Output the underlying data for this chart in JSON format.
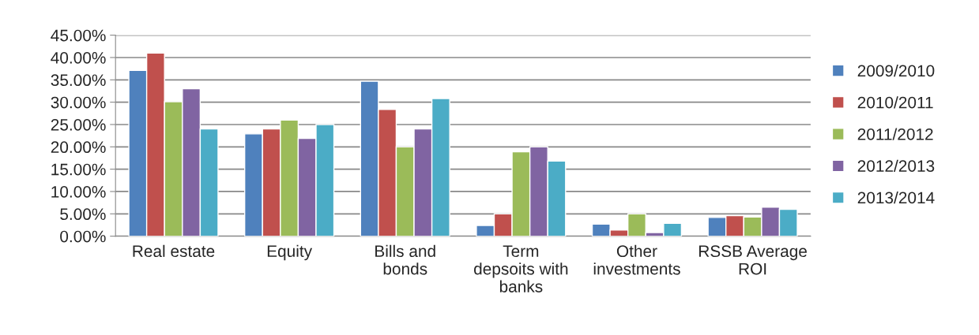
{
  "chart_data": {
    "type": "bar",
    "categories": [
      "Real estate",
      "Equity",
      "Bills and\nbonds",
      "Term\ndepsoits with\nbanks",
      "Other\ninvestments",
      "RSSB Average\nROI"
    ],
    "series": [
      {
        "name": "2009/2010",
        "color": "#4f81bd",
        "values": [
          37.1,
          22.9,
          34.7,
          2.4,
          2.7,
          4.2
        ]
      },
      {
        "name": "2010/2011",
        "color": "#c0504d",
        "values": [
          41.0,
          24.0,
          28.4,
          5.0,
          1.4,
          4.6
        ]
      },
      {
        "name": "2011/2012",
        "color": "#9bbb59",
        "values": [
          30.1,
          26.0,
          20.0,
          18.9,
          5.0,
          4.3
        ]
      },
      {
        "name": "2012/2013",
        "color": "#8064a2",
        "values": [
          33.0,
          21.9,
          24.0,
          20.0,
          0.8,
          6.5
        ]
      },
      {
        "name": "2013/2014",
        "color": "#4bacc6",
        "values": [
          24.0,
          25.0,
          30.8,
          16.8,
          2.9,
          6.0
        ]
      }
    ],
    "ylim": [
      0,
      45
    ],
    "yticks": [
      {
        "value": 0,
        "label": "0.00%"
      },
      {
        "value": 5,
        "label": "5.00%"
      },
      {
        "value": 10,
        "label": "10.00%"
      },
      {
        "value": 15,
        "label": "15.00%"
      },
      {
        "value": 20,
        "label": "20.00%"
      },
      {
        "value": 25,
        "label": "25.00%"
      },
      {
        "value": 30,
        "label": "30.00%"
      },
      {
        "value": 35,
        "label": "35.00%"
      },
      {
        "value": 40,
        "label": "40.00%"
      },
      {
        "value": 45,
        "label": "45.00%"
      }
    ],
    "grid": "y",
    "legend": "right"
  }
}
